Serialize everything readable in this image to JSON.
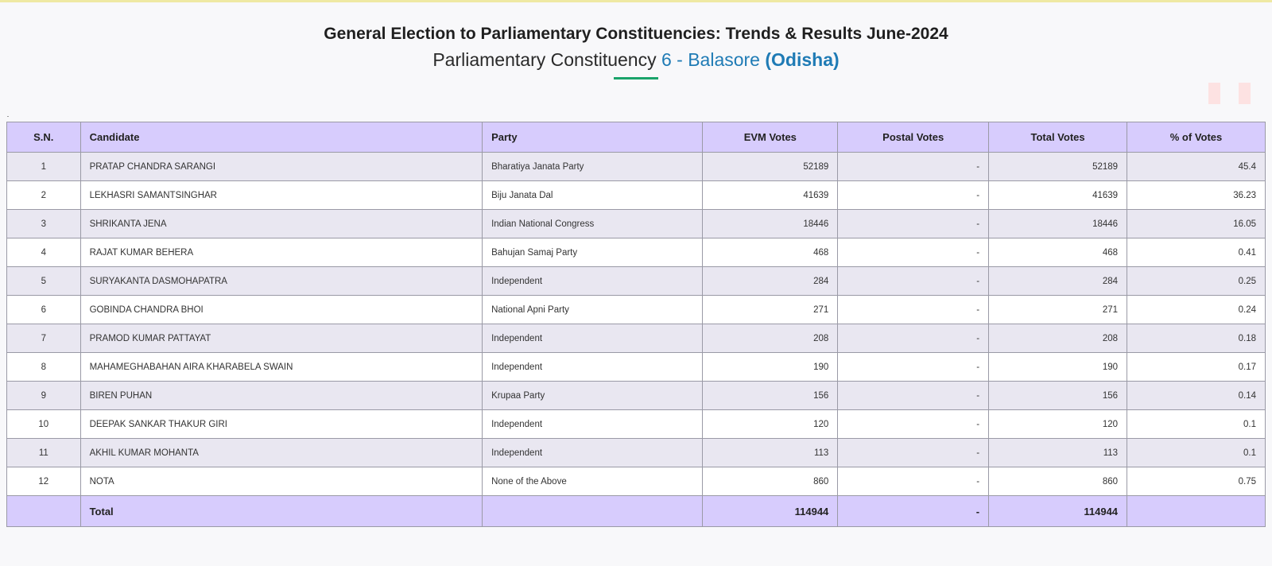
{
  "header": {
    "title": "General Election to Parliamentary Constituencies: Trends & Results June-2024",
    "subtitle_prefix": "Parliamentary Constituency",
    "constituency": "6 - Balasore",
    "state": "(Odisha)"
  },
  "colors": {
    "accent_blue": "#1f7bb5",
    "underline_green": "#1aa36a",
    "table_header_bg": "#d7ccfd",
    "row_alt_bg": "#e9e7f1"
  },
  "table": {
    "columns": [
      "S.N.",
      "Candidate",
      "Party",
      "EVM Votes",
      "Postal Votes",
      "Total Votes",
      "% of Votes"
    ],
    "rows": [
      {
        "sn": "1",
        "candidate": "PRATAP CHANDRA SARANGI",
        "party": "Bharatiya Janata Party",
        "evm": "52189",
        "postal": "-",
        "total": "52189",
        "pct": "45.4"
      },
      {
        "sn": "2",
        "candidate": "LEKHASRI SAMANTSINGHAR",
        "party": "Biju Janata Dal",
        "evm": "41639",
        "postal": "-",
        "total": "41639",
        "pct": "36.23"
      },
      {
        "sn": "3",
        "candidate": "SHRIKANTA JENA",
        "party": "Indian National Congress",
        "evm": "18446",
        "postal": "-",
        "total": "18446",
        "pct": "16.05"
      },
      {
        "sn": "4",
        "candidate": "RAJAT KUMAR BEHERA",
        "party": "Bahujan Samaj Party",
        "evm": "468",
        "postal": "-",
        "total": "468",
        "pct": "0.41"
      },
      {
        "sn": "5",
        "candidate": "SURYAKANTA DASMOHAPATRA",
        "party": "Independent",
        "evm": "284",
        "postal": "-",
        "total": "284",
        "pct": "0.25"
      },
      {
        "sn": "6",
        "candidate": "GOBINDA CHANDRA BHOI",
        "party": "National Apni Party",
        "evm": "271",
        "postal": "-",
        "total": "271",
        "pct": "0.24"
      },
      {
        "sn": "7",
        "candidate": "PRAMOD KUMAR PATTAYAT",
        "party": "Independent",
        "evm": "208",
        "postal": "-",
        "total": "208",
        "pct": "0.18"
      },
      {
        "sn": "8",
        "candidate": "MAHAMEGHABAHAN AIRA KHARABELA SWAIN",
        "party": "Independent",
        "evm": "190",
        "postal": "-",
        "total": "190",
        "pct": "0.17"
      },
      {
        "sn": "9",
        "candidate": "BIREN PUHAN",
        "party": "Krupaa Party",
        "evm": "156",
        "postal": "-",
        "total": "156",
        "pct": "0.14"
      },
      {
        "sn": "10",
        "candidate": "DEEPAK SANKAR THAKUR GIRI",
        "party": "Independent",
        "evm": "120",
        "postal": "-",
        "total": "120",
        "pct": "0.1"
      },
      {
        "sn": "11",
        "candidate": "AKHIL KUMAR MOHANTA",
        "party": "Independent",
        "evm": "113",
        "postal": "-",
        "total": "113",
        "pct": "0.1"
      },
      {
        "sn": "12",
        "candidate": "NOTA",
        "party": "None of the Above",
        "evm": "860",
        "postal": "-",
        "total": "860",
        "pct": "0.75"
      }
    ],
    "footer": {
      "label": "Total",
      "evm": "114944",
      "postal": "-",
      "total": "114944"
    }
  }
}
